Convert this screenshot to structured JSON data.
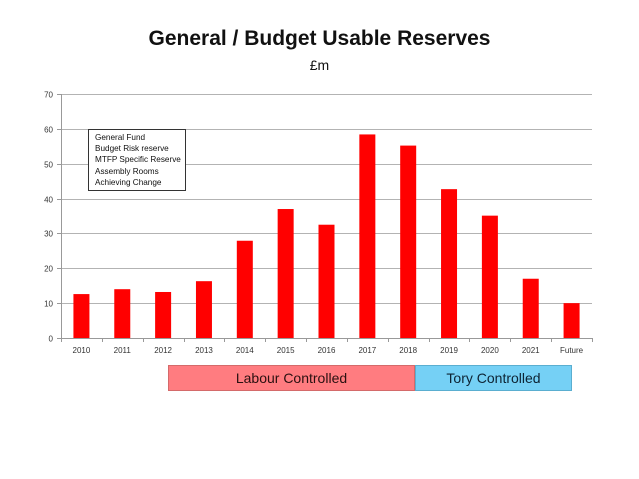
{
  "chart_data": {
    "type": "bar",
    "title": "General / Budget Usable Reserves",
    "subtitle": "£m",
    "xlabel": "",
    "ylabel": "",
    "ylim": [
      0,
      70
    ],
    "yticks": [
      0,
      10,
      20,
      30,
      40,
      50,
      60,
      70
    ],
    "grid": true,
    "categories": [
      "2010",
      "2011",
      "2012",
      "2013",
      "2014",
      "2015",
      "2016",
      "2017",
      "2018",
      "2019",
      "2020",
      "2021",
      "Future"
    ],
    "values": [
      12.6,
      14.0,
      13.2,
      16.3,
      27.9,
      37.0,
      32.5,
      58.4,
      55.2,
      42.7,
      35.1,
      17.0,
      10.0
    ],
    "bar_color": "#ff0000",
    "grid_color": "#b3b3b3",
    "annotation_box": {
      "placement": "top-left",
      "lines": [
        "General Fund",
        "Budget Risk reserve",
        "MTFP Specific Reserve",
        "Assembly Rooms",
        "Achieving Change"
      ]
    },
    "period_bands": [
      {
        "label": "Labour Controlled",
        "from": "2013",
        "to": "2018",
        "color": "#ff7c80"
      },
      {
        "label": "Tory Controlled",
        "from": "2019",
        "to": "Future",
        "color": "#75d0f5"
      }
    ]
  }
}
